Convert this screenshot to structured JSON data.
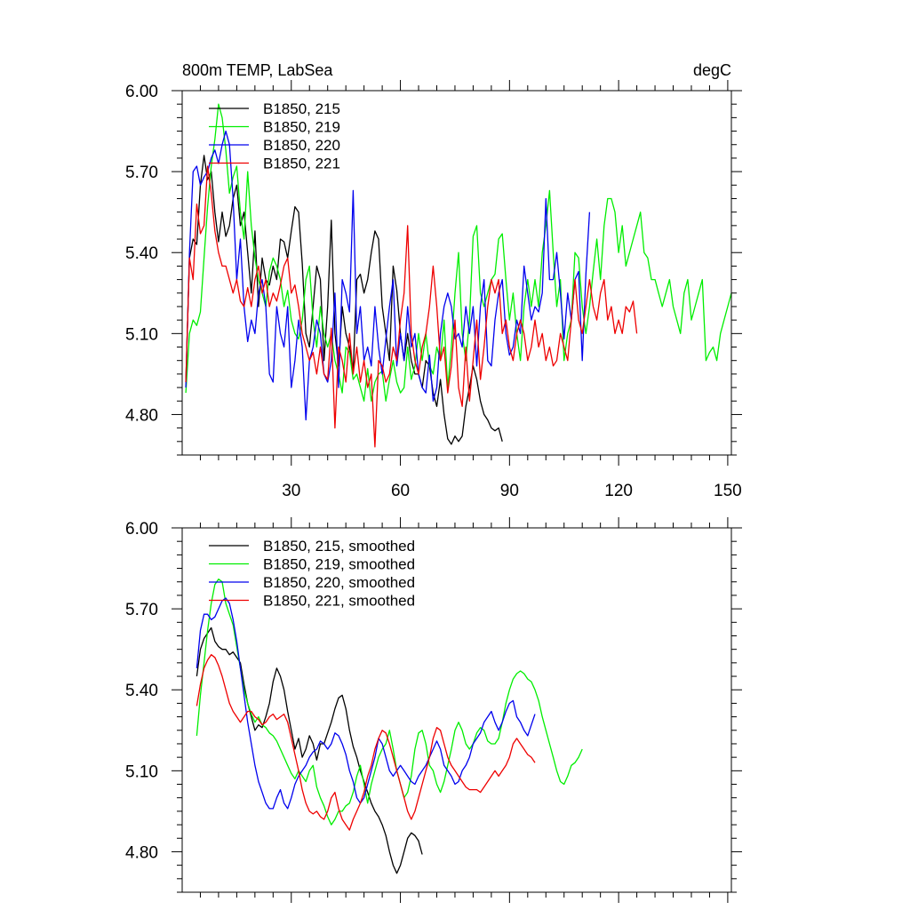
{
  "chart_data": [
    {
      "type": "line",
      "title": "800m TEMP, LabSea",
      "units_label": "degC",
      "xlim": [
        0,
        151
      ],
      "ylim": [
        4.65,
        6.0
      ],
      "x_ticks": [
        30,
        60,
        90,
        120,
        150
      ],
      "x_tick_labels": [
        "30",
        "60",
        "90",
        "120",
        "150"
      ],
      "y_ticks": [
        4.8,
        5.1,
        5.4,
        5.7,
        6.0
      ],
      "y_tick_labels": [
        "4.80",
        "5.10",
        "5.40",
        "5.70",
        "6.00"
      ],
      "show_x_labels": true,
      "legend_position": "top-left",
      "series": [
        {
          "name": "B1850, 215",
          "color": "#000000",
          "start": 1,
          "values": [
            4.92,
            5.38,
            5.45,
            5.43,
            5.65,
            5.76,
            5.67,
            5.7,
            5.55,
            5.44,
            5.55,
            5.46,
            5.5,
            5.6,
            5.65,
            5.5,
            5.55,
            5.4,
            5.25,
            5.48,
            5.2,
            5.38,
            5.3,
            5.28,
            5.35,
            5.3,
            5.45,
            5.44,
            5.38,
            5.48,
            5.57,
            5.55,
            5.36,
            5.1,
            5.05,
            5.2,
            5.35,
            5.3,
            5.0,
            5.2,
            5.52,
            5.1,
            4.98,
            5.2,
            5.1,
            5.05,
            4.96,
            5.3,
            5.32,
            5.25,
            5.3,
            5.4,
            5.48,
            5.45,
            5.2,
            5.1,
            5.0,
            5.35,
            5.26,
            5.1,
            5.0,
            5.1,
            5.0,
            4.95,
            4.95,
            4.9,
            5.0,
            4.98,
            4.88,
            4.83,
            4.93,
            4.8,
            4.71,
            4.69,
            4.72,
            4.7,
            4.72,
            4.83,
            4.9,
            4.98,
            4.93,
            4.85,
            4.8,
            4.78,
            4.75,
            4.74,
            4.75,
            4.7
          ]
        },
        {
          "name": "B1850, 219",
          "color": "#00ee00",
          "start": 1,
          "values": [
            4.88,
            5.1,
            5.15,
            5.13,
            5.18,
            5.38,
            5.57,
            5.72,
            5.82,
            5.95,
            5.9,
            5.78,
            5.62,
            5.68,
            5.72,
            5.55,
            5.45,
            5.7,
            5.5,
            5.38,
            5.3,
            5.25,
            5.2,
            5.33,
            5.38,
            5.35,
            5.3,
            5.2,
            5.26,
            5.15,
            5.1,
            5.08,
            5.15,
            5.3,
            5.35,
            5.15,
            5.05,
            5.2,
            5.1,
            5.05,
            5.1,
            5.0,
            4.95,
            4.88,
            5.05,
            5.03,
            4.93,
            4.95,
            4.9,
            4.85,
            4.97,
            4.85,
            4.92,
            4.95,
            4.96,
            4.85,
            4.93,
            5.0,
            4.92,
            4.88,
            4.9,
            5.05,
            4.93,
            4.98,
            5.1,
            5.0,
            5.1,
            4.98,
            4.95,
            5.05,
            5.0,
            5.15,
            4.9,
            5.05,
            5.25,
            5.4,
            5.1,
            5.0,
            5.15,
            5.46,
            5.5,
            5.25,
            5.2,
            5.25,
            5.3,
            5.32,
            5.45,
            5.47,
            5.3,
            5.15,
            5.25,
            5.1,
            5.0,
            5.2,
            5.3,
            5.2,
            5.3,
            5.2,
            5.4,
            5.5,
            5.63,
            5.4,
            5.2,
            5.3,
            5.0,
            5.1,
            5.15,
            5.4,
            5.38,
            5.2,
            5.1,
            5.2,
            5.33,
            5.45,
            5.3,
            5.5,
            5.6,
            5.6,
            5.55,
            5.4,
            5.5,
            5.35,
            5.4,
            5.45,
            5.5,
            5.55,
            5.4,
            5.38,
            5.3,
            5.3,
            5.25,
            5.2,
            5.25,
            5.3,
            5.2,
            5.15,
            5.1,
            5.25,
            5.3,
            5.15,
            5.2,
            5.25,
            5.3,
            5.0,
            5.03,
            5.05,
            5.0,
            5.1,
            5.15,
            5.2,
            5.25,
            5.1,
            5.2
          ]
        },
        {
          "name": "B1850, 220",
          "color": "#0000ee",
          "start": 1,
          "values": [
            4.9,
            5.4,
            5.7,
            5.72,
            5.65,
            5.68,
            5.7,
            5.75,
            5.78,
            5.73,
            5.8,
            5.85,
            5.8,
            5.6,
            5.3,
            5.45,
            5.2,
            5.07,
            5.15,
            5.1,
            5.25,
            5.3,
            5.2,
            4.95,
            4.92,
            5.2,
            5.1,
            5.05,
            5.2,
            4.9,
            5.0,
            5.15,
            5.05,
            4.78,
            5.0,
            5.05,
            5.15,
            5.1,
            4.95,
            4.92,
            5.0,
            5.25,
            4.9,
            5.3,
            5.25,
            5.18,
            5.63,
            5.1,
            5.2,
            5.0,
            5.05,
            4.98,
            5.2,
            5.05,
            4.95,
            5.08,
            5.2,
            5.3,
            4.98,
            5.1,
            5.0,
            5.2,
            5.05,
            5.1,
            4.95,
            4.9,
            4.88,
            5.02,
            4.85,
            4.9,
            5.1,
            5.2,
            5.25,
            5.2,
            5.08,
            5.1,
            5.05,
            5.2,
            5.1,
            5.2,
            4.98,
            5.2,
            5.3,
            5.0,
            4.98,
            5.15,
            5.25,
            5.3,
            5.1,
            5.02,
            5.05,
            5.15,
            5.1,
            5.35,
            5.25,
            5.15,
            5.2,
            5.18,
            5.25,
            5.6,
            5.3,
            5.3,
            5.4,
            5.25,
            5.08,
            5.25,
            5.15,
            5.3,
            5.33,
            5.0,
            5.32,
            5.55
          ]
        },
        {
          "name": "B1850, 221",
          "color": "#ee0000",
          "start": 1,
          "values": [
            4.92,
            5.38,
            5.3,
            5.58,
            5.47,
            5.5,
            5.72,
            5.62,
            5.48,
            5.4,
            5.35,
            5.35,
            5.3,
            5.25,
            5.3,
            5.22,
            5.2,
            5.27,
            5.2,
            5.3,
            5.35,
            5.25,
            5.3,
            5.2,
            5.25,
            5.22,
            5.28,
            5.35,
            5.38,
            5.25,
            5.28,
            5.2,
            5.1,
            5.05,
            5.0,
            5.03,
            4.95,
            5.05,
            4.95,
            4.93,
            5.12,
            4.75,
            5.05,
            5.0,
            4.92,
            5.1,
            4.95,
            5.05,
            4.92,
            5.0,
            4.9,
            4.95,
            4.68,
            5.0,
            4.98,
            4.92,
            4.95,
            5.05,
            5.0,
            5.15,
            5.25,
            5.5,
            5.1,
            5.0,
            4.95,
            5.05,
            5.1,
            5.2,
            5.35,
            5.2,
            5.0,
            5.05,
            4.88,
            4.98,
            5.15,
            4.9,
            4.83,
            5.05,
            4.85,
            5.0,
            5.15,
            4.93,
            5.05,
            5.2,
            5.3,
            5.25,
            5.3,
            5.1,
            5.15,
            5.05,
            5.0,
            5.1,
            5.15,
            5.1,
            5.0,
            5.05,
            5.15,
            5.05,
            5.1,
            5.0,
            5.05,
            4.98,
            5.0,
            5.1,
            5.05,
            5.0,
            5.15,
            5.3,
            5.15,
            5.1,
            5.2,
            5.3,
            5.2,
            5.15,
            5.25,
            5.3,
            5.15,
            5.2,
            5.1,
            5.15,
            5.1,
            5.2,
            5.18,
            5.22,
            5.1
          ]
        }
      ]
    },
    {
      "type": "line",
      "title": "",
      "units_label": "",
      "xlim": [
        0,
        151
      ],
      "ylim": [
        4.65,
        6.0
      ],
      "x_ticks": [
        30,
        60,
        90,
        120,
        150
      ],
      "x_tick_labels": [],
      "y_ticks": [
        4.8,
        5.1,
        5.4,
        5.7,
        6.0
      ],
      "y_tick_labels": [
        "4.80",
        "5.10",
        "5.40",
        "5.70",
        "6.00"
      ],
      "show_x_labels": false,
      "legend_position": "top-left",
      "series": [
        {
          "name": "B1850, 215, smoothed",
          "color": "#000000",
          "start": 4,
          "values": [
            5.45,
            5.55,
            5.59,
            5.61,
            5.63,
            5.58,
            5.56,
            5.55,
            5.55,
            5.53,
            5.54,
            5.52,
            5.5,
            5.42,
            5.35,
            5.3,
            5.25,
            5.27,
            5.26,
            5.3,
            5.35,
            5.43,
            5.48,
            5.45,
            5.4,
            5.32,
            5.25,
            5.18,
            5.22,
            5.15,
            5.18,
            5.23,
            5.2,
            5.14,
            5.2,
            5.2,
            5.24,
            5.28,
            5.33,
            5.37,
            5.38,
            5.33,
            5.25,
            5.19,
            5.15,
            5.1,
            5.06,
            5.02,
            4.98,
            4.95,
            4.93,
            4.9,
            4.86,
            4.8,
            4.75,
            4.72,
            4.75,
            4.8,
            4.85,
            4.87,
            4.86,
            4.84,
            4.79
          ]
        },
        {
          "name": "B1850, 219, smoothed",
          "color": "#00ee00",
          "start": 4,
          "values": [
            5.23,
            5.38,
            5.5,
            5.62,
            5.72,
            5.79,
            5.81,
            5.8,
            5.72,
            5.68,
            5.64,
            5.56,
            5.48,
            5.4,
            5.35,
            5.31,
            5.28,
            5.3,
            5.27,
            5.26,
            5.24,
            5.23,
            5.21,
            5.18,
            5.15,
            5.12,
            5.09,
            5.07,
            5.1,
            5.08,
            5.06,
            5.1,
            5.12,
            5.04,
            5.0,
            4.97,
            4.93,
            4.9,
            4.92,
            4.95,
            4.95,
            4.97,
            4.98,
            5.02,
            5.08,
            5.12,
            5.05,
            4.98,
            5.05,
            5.1,
            5.15,
            5.18,
            5.2,
            5.25,
            5.18,
            5.1,
            5.05,
            5.0,
            5.02,
            5.08,
            5.18,
            5.24,
            5.25,
            5.2,
            5.12,
            5.1,
            5.05,
            5.02,
            5.06,
            5.12,
            5.18,
            5.25,
            5.28,
            5.25,
            5.2,
            5.18,
            5.2,
            5.24,
            5.26,
            5.25,
            5.21,
            5.2,
            5.2,
            5.22,
            5.28,
            5.35,
            5.4,
            5.44,
            5.46,
            5.47,
            5.46,
            5.44,
            5.43,
            5.4,
            5.36,
            5.3,
            5.25,
            5.2,
            5.15,
            5.1,
            5.06,
            5.05,
            5.08,
            5.12,
            5.13,
            5.15,
            5.18
          ]
        },
        {
          "name": "B1850, 220, smoothed",
          "color": "#0000ee",
          "start": 4,
          "values": [
            5.48,
            5.62,
            5.68,
            5.68,
            5.66,
            5.67,
            5.7,
            5.73,
            5.74,
            5.72,
            5.66,
            5.58,
            5.48,
            5.38,
            5.28,
            5.2,
            5.12,
            5.06,
            5.02,
            4.98,
            4.96,
            4.96,
            5.0,
            5.03,
            4.98,
            4.96,
            5.0,
            5.05,
            5.08,
            5.1,
            5.12,
            5.15,
            5.17,
            5.18,
            5.21,
            5.2,
            5.18,
            5.2,
            5.24,
            5.23,
            5.2,
            5.16,
            5.1,
            5.06,
            5.0,
            4.98,
            5.0,
            5.05,
            5.1,
            5.15,
            5.22,
            5.2,
            5.15,
            5.1,
            5.08,
            5.1,
            5.12,
            5.1,
            5.08,
            5.06,
            5.05,
            5.08,
            5.1,
            5.12,
            5.15,
            5.18,
            5.21,
            5.18,
            5.12,
            5.1,
            5.08,
            5.05,
            5.06,
            5.1,
            5.12,
            5.15,
            5.2,
            5.22,
            5.24,
            5.28,
            5.3,
            5.32,
            5.28,
            5.25,
            5.28,
            5.32,
            5.35,
            5.36,
            5.3,
            5.28,
            5.25,
            5.23,
            5.27,
            5.31
          ]
        },
        {
          "name": "B1850, 221, smoothed",
          "color": "#ee0000",
          "start": 4,
          "values": [
            5.34,
            5.42,
            5.48,
            5.51,
            5.53,
            5.52,
            5.49,
            5.45,
            5.4,
            5.35,
            5.32,
            5.3,
            5.28,
            5.3,
            5.32,
            5.32,
            5.3,
            5.29,
            5.27,
            5.28,
            5.3,
            5.31,
            5.29,
            5.3,
            5.31,
            5.28,
            5.22,
            5.16,
            5.1,
            5.03,
            4.98,
            4.95,
            4.94,
            4.95,
            4.93,
            4.92,
            4.95,
            5.0,
            5.02,
            4.96,
            4.92,
            4.9,
            4.88,
            4.92,
            4.95,
            4.98,
            5.02,
            5.08,
            5.12,
            5.18,
            5.22,
            5.25,
            5.24,
            5.2,
            5.15,
            5.1,
            5.05,
            5.0,
            4.95,
            4.92,
            4.95,
            5.0,
            5.05,
            5.1,
            5.15,
            5.22,
            5.26,
            5.25,
            5.2,
            5.15,
            5.12,
            5.1,
            5.08,
            5.06,
            5.04,
            5.03,
            5.03,
            5.03,
            5.02,
            5.04,
            5.06,
            5.08,
            5.1,
            5.08,
            5.1,
            5.12,
            5.15,
            5.2,
            5.22,
            5.2,
            5.18,
            5.16,
            5.15,
            5.13
          ]
        }
      ]
    }
  ]
}
